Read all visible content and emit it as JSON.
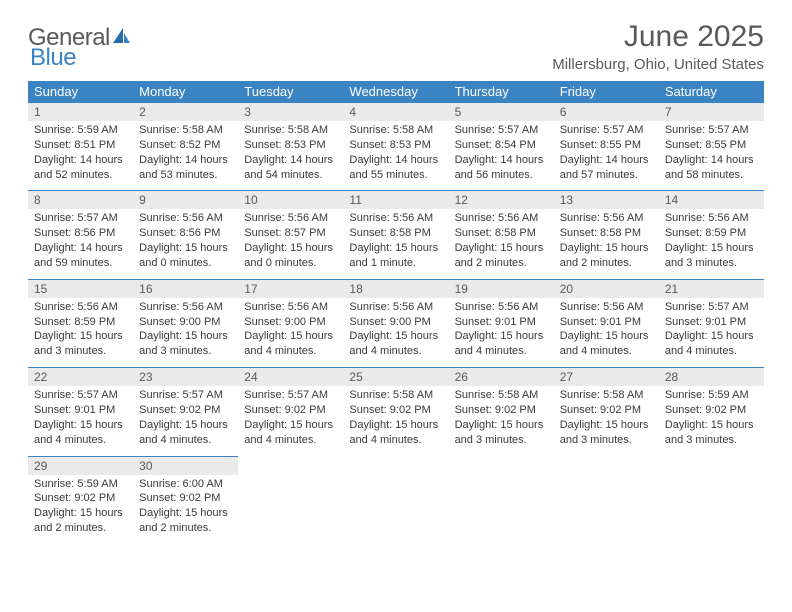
{
  "logo": {
    "text1": "General",
    "text2": "Blue"
  },
  "title": "June 2025",
  "location": "Millersburg, Ohio, United States",
  "headers": [
    "Sunday",
    "Monday",
    "Tuesday",
    "Wednesday",
    "Thursday",
    "Friday",
    "Saturday"
  ],
  "colors": {
    "header_bg": "#3a84c4",
    "header_fg": "#ffffff",
    "daynum_bg": "#eaeaea",
    "text": "#5a5a5a",
    "border": "#3a84c4"
  },
  "weeks": [
    [
      {
        "n": "1",
        "sr": "5:59 AM",
        "ss": "8:51 PM",
        "dl": "14 hours and 52 minutes."
      },
      {
        "n": "2",
        "sr": "5:58 AM",
        "ss": "8:52 PM",
        "dl": "14 hours and 53 minutes."
      },
      {
        "n": "3",
        "sr": "5:58 AM",
        "ss": "8:53 PM",
        "dl": "14 hours and 54 minutes."
      },
      {
        "n": "4",
        "sr": "5:58 AM",
        "ss": "8:53 PM",
        "dl": "14 hours and 55 minutes."
      },
      {
        "n": "5",
        "sr": "5:57 AM",
        "ss": "8:54 PM",
        "dl": "14 hours and 56 minutes."
      },
      {
        "n": "6",
        "sr": "5:57 AM",
        "ss": "8:55 PM",
        "dl": "14 hours and 57 minutes."
      },
      {
        "n": "7",
        "sr": "5:57 AM",
        "ss": "8:55 PM",
        "dl": "14 hours and 58 minutes."
      }
    ],
    [
      {
        "n": "8",
        "sr": "5:57 AM",
        "ss": "8:56 PM",
        "dl": "14 hours and 59 minutes."
      },
      {
        "n": "9",
        "sr": "5:56 AM",
        "ss": "8:56 PM",
        "dl": "15 hours and 0 minutes."
      },
      {
        "n": "10",
        "sr": "5:56 AM",
        "ss": "8:57 PM",
        "dl": "15 hours and 0 minutes."
      },
      {
        "n": "11",
        "sr": "5:56 AM",
        "ss": "8:58 PM",
        "dl": "15 hours and 1 minute."
      },
      {
        "n": "12",
        "sr": "5:56 AM",
        "ss": "8:58 PM",
        "dl": "15 hours and 2 minutes."
      },
      {
        "n": "13",
        "sr": "5:56 AM",
        "ss": "8:58 PM",
        "dl": "15 hours and 2 minutes."
      },
      {
        "n": "14",
        "sr": "5:56 AM",
        "ss": "8:59 PM",
        "dl": "15 hours and 3 minutes."
      }
    ],
    [
      {
        "n": "15",
        "sr": "5:56 AM",
        "ss": "8:59 PM",
        "dl": "15 hours and 3 minutes."
      },
      {
        "n": "16",
        "sr": "5:56 AM",
        "ss": "9:00 PM",
        "dl": "15 hours and 3 minutes."
      },
      {
        "n": "17",
        "sr": "5:56 AM",
        "ss": "9:00 PM",
        "dl": "15 hours and 4 minutes."
      },
      {
        "n": "18",
        "sr": "5:56 AM",
        "ss": "9:00 PM",
        "dl": "15 hours and 4 minutes."
      },
      {
        "n": "19",
        "sr": "5:56 AM",
        "ss": "9:01 PM",
        "dl": "15 hours and 4 minutes."
      },
      {
        "n": "20",
        "sr": "5:56 AM",
        "ss": "9:01 PM",
        "dl": "15 hours and 4 minutes."
      },
      {
        "n": "21",
        "sr": "5:57 AM",
        "ss": "9:01 PM",
        "dl": "15 hours and 4 minutes."
      }
    ],
    [
      {
        "n": "22",
        "sr": "5:57 AM",
        "ss": "9:01 PM",
        "dl": "15 hours and 4 minutes."
      },
      {
        "n": "23",
        "sr": "5:57 AM",
        "ss": "9:02 PM",
        "dl": "15 hours and 4 minutes."
      },
      {
        "n": "24",
        "sr": "5:57 AM",
        "ss": "9:02 PM",
        "dl": "15 hours and 4 minutes."
      },
      {
        "n": "25",
        "sr": "5:58 AM",
        "ss": "9:02 PM",
        "dl": "15 hours and 4 minutes."
      },
      {
        "n": "26",
        "sr": "5:58 AM",
        "ss": "9:02 PM",
        "dl": "15 hours and 3 minutes."
      },
      {
        "n": "27",
        "sr": "5:58 AM",
        "ss": "9:02 PM",
        "dl": "15 hours and 3 minutes."
      },
      {
        "n": "28",
        "sr": "5:59 AM",
        "ss": "9:02 PM",
        "dl": "15 hours and 3 minutes."
      }
    ],
    [
      {
        "n": "29",
        "sr": "5:59 AM",
        "ss": "9:02 PM",
        "dl": "15 hours and 2 minutes."
      },
      {
        "n": "30",
        "sr": "6:00 AM",
        "ss": "9:02 PM",
        "dl": "15 hours and 2 minutes."
      },
      null,
      null,
      null,
      null,
      null
    ]
  ]
}
